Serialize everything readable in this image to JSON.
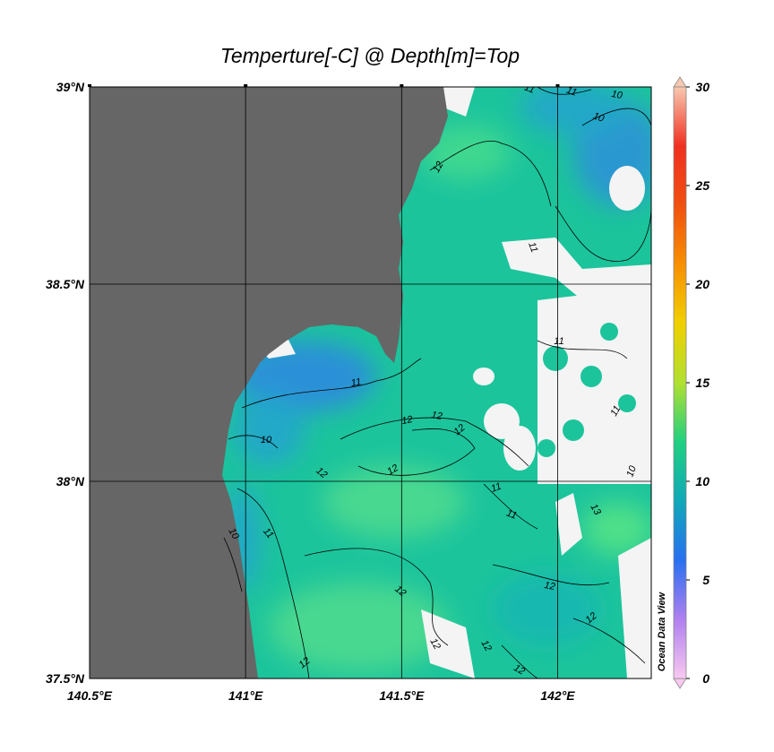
{
  "title": "Temperture[-C] @ Depth[m]=Top",
  "map": {
    "xlim": [
      140.5,
      142.3
    ],
    "ylim": [
      37.5,
      39.0
    ],
    "lon_ticks": [
      {
        "value": 140.5,
        "label": "140.5°E"
      },
      {
        "value": 141,
        "label": "141°E"
      },
      {
        "value": 141.5,
        "label": "141.5°E"
      },
      {
        "value": 142,
        "label": "142°E"
      }
    ],
    "lat_ticks": [
      {
        "value": 37.5,
        "label": "37.5°N"
      },
      {
        "value": 38,
        "label": "38°N"
      },
      {
        "value": 38.5,
        "label": "38.5°N"
      },
      {
        "value": 39,
        "label": "39°N"
      }
    ],
    "grid": true,
    "land_color": "#666666",
    "contour_labels": [
      11,
      11,
      10,
      10,
      12,
      11,
      11,
      11,
      12,
      12,
      12,
      10,
      12,
      12,
      11,
      10,
      13,
      11,
      10,
      11,
      11,
      12,
      12,
      12,
      12,
      12,
      12,
      12
    ]
  },
  "colorbar": {
    "range": [
      0,
      30
    ],
    "ticks": [
      0,
      5,
      10,
      15,
      20,
      25,
      30
    ],
    "colors": [
      "#f8c8f0",
      "#b080f0",
      "#2870f0",
      "#10a8b8",
      "#20d080",
      "#b0e030",
      "#f0d000",
      "#f89000",
      "#f05010",
      "#f03020",
      "#f8c8b0"
    ]
  },
  "credit": "Ocean Data View"
}
